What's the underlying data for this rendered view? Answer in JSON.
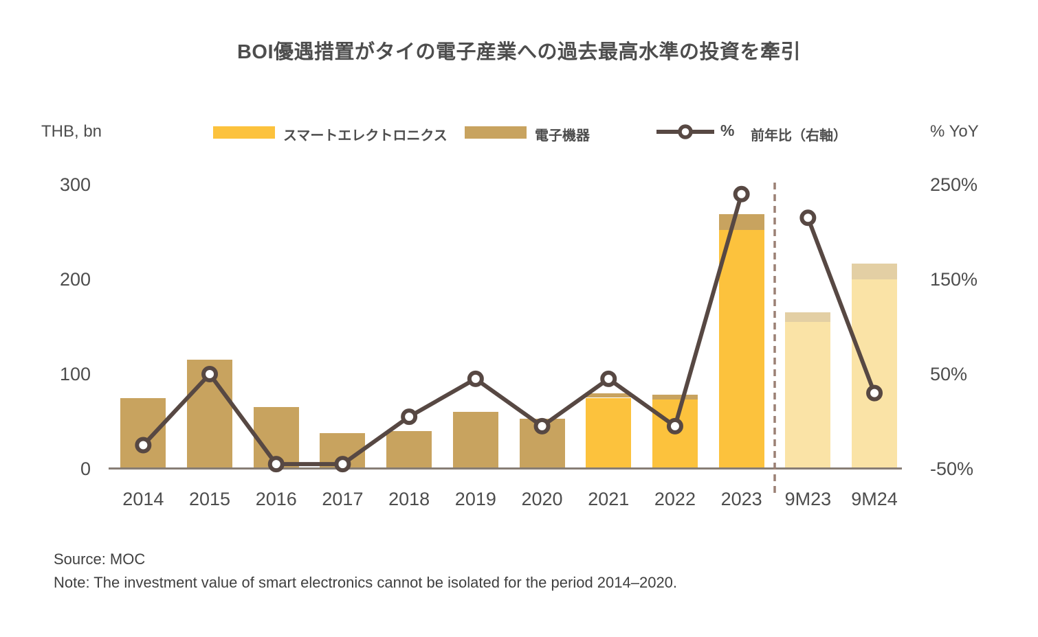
{
  "title": "BOI優遇措置がタイの電子産業への過去最高水準の投資を牽引",
  "legend": {
    "smart_label": "スマートエレクトロニクス",
    "electronics_label": "電子機器",
    "line_percent": "%",
    "line_label": "前年比（右軸）"
  },
  "left_axis_unit": "THB, bn",
  "right_axis_unit": "% YoY",
  "footer": {
    "source": "Source: MOC",
    "note": "Note: The investment value of smart electronics cannot be isolated for the period 2014–2020."
  },
  "colors": {
    "smart": "#fcc23d",
    "electronics": "#c8a35f",
    "smart_faded": "#fae3a6",
    "electronics_faded": "#e3cfa4",
    "line": "#574843",
    "marker_fill": "#ffffff",
    "axis_line": "#877d75",
    "divider": "#9b8074",
    "text": "#4d4d4d"
  },
  "chart_data": {
    "type": "bar",
    "subtype": "stacked-bars-with-yoy-line",
    "title": "BOI優遇措置がタイの電子産業への過去最高水準の投資を牽引",
    "categories": [
      "2014",
      "2015",
      "2016",
      "2017",
      "2018",
      "2019",
      "2020",
      "2021",
      "2022",
      "2023",
      "9M23",
      "9M24"
    ],
    "series": [
      {
        "name": "スマートエレクトロニクス",
        "type": "bar",
        "axis": "left",
        "values": [
          null,
          null,
          null,
          null,
          null,
          null,
          null,
          75,
          73,
          252,
          155,
          200
        ]
      },
      {
        "name": "電子機器",
        "type": "bar",
        "axis": "left",
        "values": [
          75,
          115,
          65,
          38,
          40,
          60,
          53,
          5,
          5,
          17,
          10,
          17
        ]
      },
      {
        "name": "% 前年比（右軸）",
        "type": "line",
        "axis": "right",
        "values": [
          -25,
          50,
          -45,
          -45,
          5,
          45,
          -5,
          45,
          -5,
          240,
          215,
          30
        ]
      }
    ],
    "left_axis": {
      "label": "THB, bn",
      "ticks": [
        0,
        100,
        200,
        300
      ],
      "range": [
        0,
        300
      ]
    },
    "right_axis": {
      "label": "% YoY",
      "ticks": [
        -50,
        50,
        150,
        250
      ],
      "tick_suffix": "%",
      "range": [
        -50,
        250
      ]
    },
    "divider_between": [
      "2023",
      "9M23"
    ],
    "faded_categories": [
      "9M23",
      "9M24"
    ],
    "legend_position": "top",
    "grid": false
  }
}
